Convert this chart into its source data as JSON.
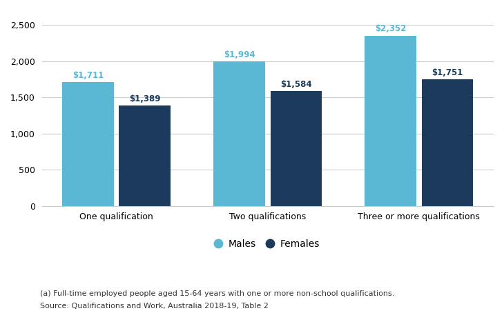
{
  "categories": [
    "One qualification",
    "Two qualifications",
    "Three or more qualifications"
  ],
  "males": [
    1711,
    1994,
    2352
  ],
  "females": [
    1389,
    1584,
    1751
  ],
  "male_labels": [
    "$1,711",
    "$1,994",
    "$2,352"
  ],
  "female_labels": [
    "$1,389",
    "$1,584",
    "$1,751"
  ],
  "male_color": "#5BB8D4",
  "female_color": "#1B3A5C",
  "ylim": [
    0,
    2700
  ],
  "yticks": [
    0,
    500,
    1000,
    1500,
    2000,
    2500
  ],
  "ytick_labels": [
    "0",
    "500",
    "1,000",
    "1,500",
    "2,000",
    "2,500"
  ],
  "legend_labels": [
    "Males",
    "Females"
  ],
  "footnote1": "(a) Full-time employed people aged 15-64 years with one or more non-school qualifications.",
  "footnote2": "Source: Qualifications and Work, Australia 2018-19, Table 2",
  "label_color_male": "#5BB8D4",
  "label_color_female": "#1B3A5C",
  "bg_color": "#ffffff",
  "grid_color": "#cccccc",
  "label_fontsize": 8.5,
  "tick_fontsize": 9,
  "legend_fontsize": 10,
  "footnote_fontsize": 8
}
